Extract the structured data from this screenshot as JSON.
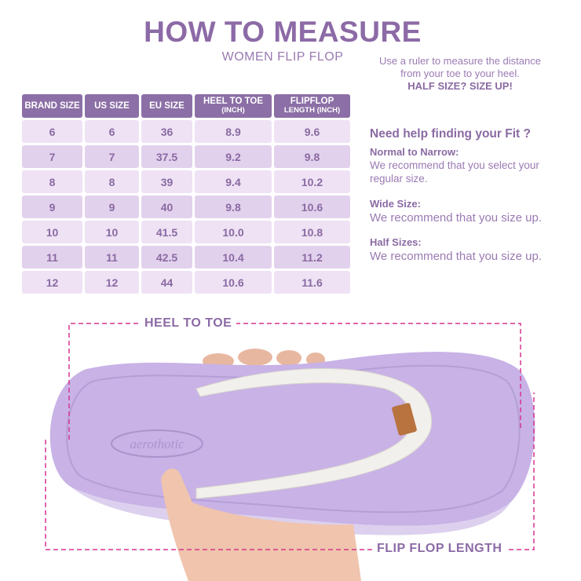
{
  "title": "HOW TO MEASURE",
  "subtitle": "WOMEN FLIP FLOP",
  "table": {
    "headers": [
      {
        "main": "BRAND SIZE",
        "sub": ""
      },
      {
        "main": "US SIZE",
        "sub": ""
      },
      {
        "main": "EU SIZE",
        "sub": ""
      },
      {
        "main": "HEEL TO TOE",
        "sub": "(INCH)"
      },
      {
        "main": "FLIPFLOP",
        "sub": "LENGTH (INCH)"
      }
    ],
    "rows": [
      [
        "6",
        "6",
        "36",
        "8.9",
        "9.6"
      ],
      [
        "7",
        "7",
        "37.5",
        "9.2",
        "9.8"
      ],
      [
        "8",
        "8",
        "39",
        "9.4",
        "10.2"
      ],
      [
        "9",
        "9",
        "40",
        "9.8",
        "10.6"
      ],
      [
        "10",
        "10",
        "41.5",
        "10.0",
        "10.8"
      ],
      [
        "11",
        "11",
        "42.5",
        "10.4",
        "11.2"
      ],
      [
        "12",
        "12",
        "44",
        "10.6",
        "11.6"
      ]
    ]
  },
  "intro": {
    "text": "Use a ruler to measure the distance from your toe to your heel.",
    "emphasis": "HALF SIZE? SIZE UP!"
  },
  "fit": {
    "heading": "Need help finding your Fit ?",
    "items": [
      {
        "title": "Normal to Narrow:",
        "text": "We recommend that you select your regular size."
      },
      {
        "title": "Wide Size:",
        "text": "We recommend that you size up."
      },
      {
        "title": "Half Sizes:",
        "text": "We recommend that you size up."
      }
    ]
  },
  "diagram": {
    "heel_to_toe_label": "HEEL TO TOE",
    "length_label": "FLIP FLOP LENGTH",
    "logo": "aerothotic"
  },
  "colors": {
    "accent": "#8c6fa6",
    "dash": "#d6358f",
    "sole": "#c8b2e6"
  }
}
